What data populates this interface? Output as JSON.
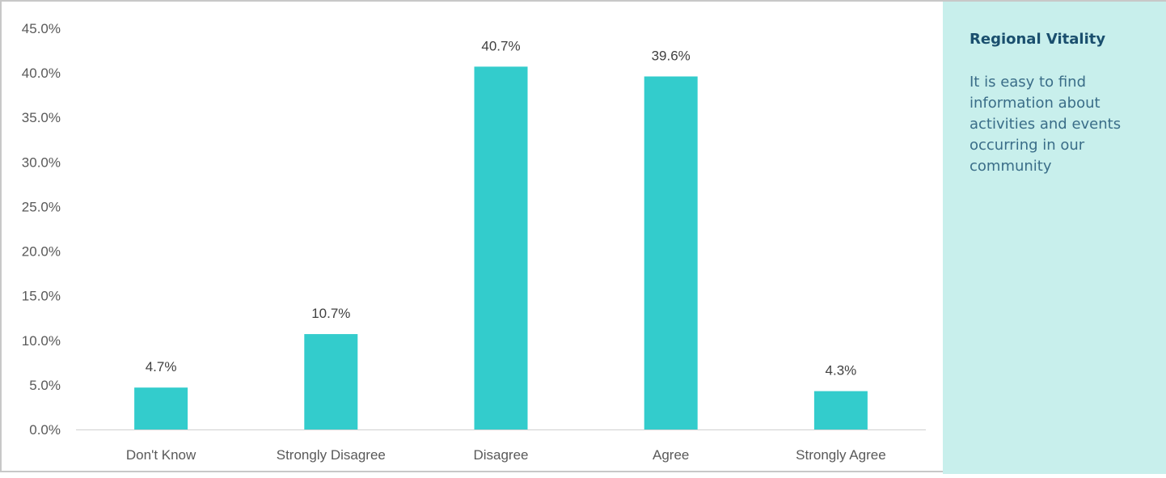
{
  "chart_data": {
    "type": "bar",
    "categories": [
      "Don't Know",
      "Strongly Disagree",
      "Disagree",
      "Agree",
      "Strongly Agree"
    ],
    "values": [
      4.7,
      10.7,
      40.7,
      39.6,
      4.3
    ],
    "data_labels": [
      "4.7%",
      "10.7%",
      "40.7%",
      "39.6%",
      "4.3%"
    ],
    "y_ticks": [
      0,
      5,
      10,
      15,
      20,
      25,
      30,
      35,
      40,
      45
    ],
    "y_tick_labels": [
      "0.0%",
      "5.0%",
      "10.0%",
      "15.0%",
      "20.0%",
      "25.0%",
      "30.0%",
      "35.0%",
      "40.0%",
      "45.0%"
    ],
    "ylim": [
      0,
      45
    ],
    "grid": false,
    "bar_color": "#33cccc"
  },
  "panel": {
    "title": "Regional Vitality",
    "text": "It is easy to find information about activities and events occurring in our community",
    "background": "#c8efec"
  }
}
